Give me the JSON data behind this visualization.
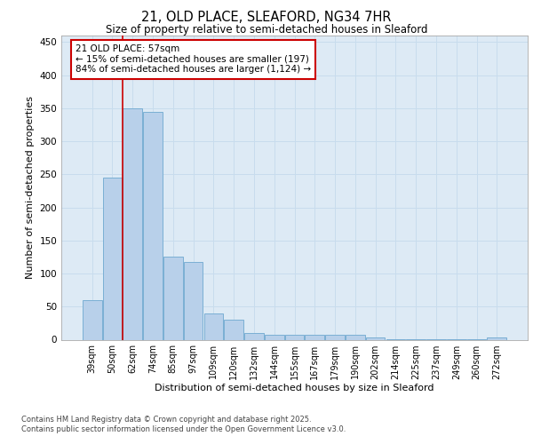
{
  "title_line1": "21, OLD PLACE, SLEAFORD, NG34 7HR",
  "title_line2": "Size of property relative to semi-detached houses in Sleaford",
  "xlabel": "Distribution of semi-detached houses by size in Sleaford",
  "ylabel": "Number of semi-detached properties",
  "categories": [
    "39sqm",
    "50sqm",
    "62sqm",
    "74sqm",
    "85sqm",
    "97sqm",
    "109sqm",
    "120sqm",
    "132sqm",
    "144sqm",
    "155sqm",
    "167sqm",
    "179sqm",
    "190sqm",
    "202sqm",
    "214sqm",
    "225sqm",
    "237sqm",
    "249sqm",
    "260sqm",
    "272sqm"
  ],
  "values": [
    60,
    245,
    350,
    345,
    125,
    118,
    40,
    30,
    10,
    7,
    7,
    7,
    8,
    8,
    3,
    1,
    1,
    1,
    1,
    1,
    3
  ],
  "bar_color": "#b8d0ea",
  "bar_edge_color": "#7aafd4",
  "grid_color": "#c8dced",
  "background_color": "#ddeaf5",
  "vline_x_index": 1.5,
  "annotation_text": "21 OLD PLACE: 57sqm\n← 15% of semi-detached houses are smaller (197)\n84% of semi-detached houses are larger (1,124) →",
  "annotation_box_color": "#ffffff",
  "annotation_box_edge": "#cc0000",
  "vline_color": "#cc0000",
  "ylim": [
    0,
    460
  ],
  "yticks": [
    0,
    50,
    100,
    150,
    200,
    250,
    300,
    350,
    400,
    450
  ],
  "footer_text": "Contains HM Land Registry data © Crown copyright and database right 2025.\nContains public sector information licensed under the Open Government Licence v3.0."
}
